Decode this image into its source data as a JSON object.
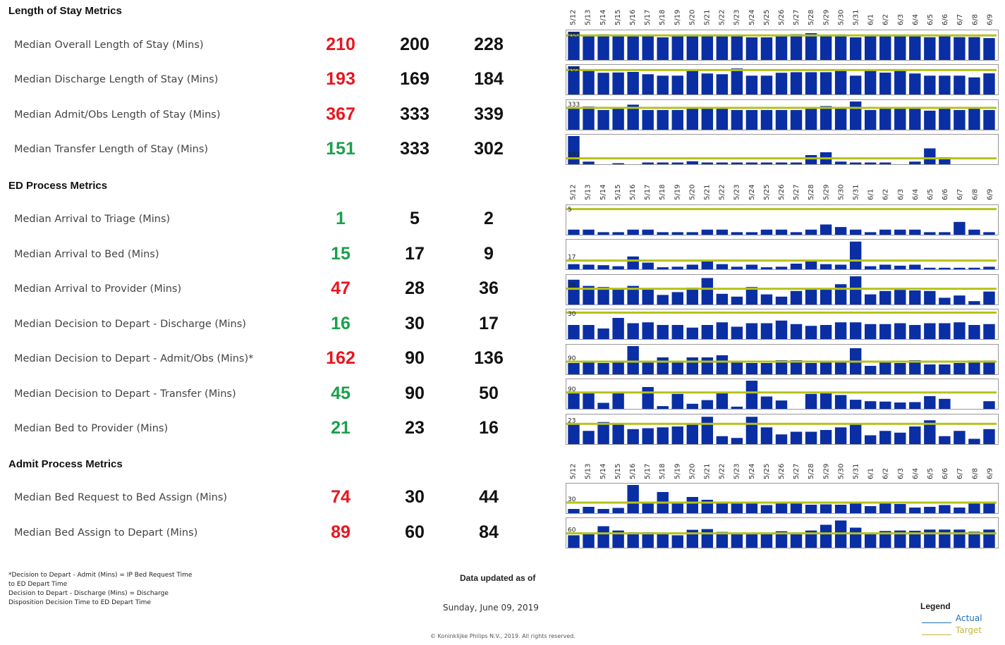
{
  "dates": [
    "5/12",
    "5/13",
    "5/14",
    "5/15",
    "5/16",
    "5/17",
    "5/18",
    "5/19",
    "5/20",
    "5/21",
    "5/22",
    "5/23",
    "5/24",
    "5/25",
    "5/26",
    "5/27",
    "5/28",
    "5/29",
    "5/30",
    "5/31",
    "6/1",
    "6/2",
    "6/3",
    "6/4",
    "6/5",
    "6/6",
    "6/7",
    "6/8",
    "6/9"
  ],
  "colors": {
    "red": "#e8161e",
    "green": "#1aa04a",
    "bar": "#0a2ea3",
    "target": "#b5c21a",
    "legend_actual": "#1f6fbf",
    "legend_target": "#c7b544"
  },
  "sections": {
    "los": "Length of Stay Metrics",
    "ed": "ED Process Metrics",
    "admit": "Admit Process Metrics"
  },
  "metrics": [
    {
      "label": "Median Overall Length of Stay (Mins)",
      "v1": "210",
      "v2": "200",
      "v3": "228",
      "v1_status": "red"
    },
    {
      "label": "Median Discharge Length of Stay (Mins)",
      "v1": "193",
      "v2": "169",
      "v3": "184",
      "v1_status": "red"
    },
    {
      "label": "Median Admit/Obs Length of Stay (Mins)",
      "v1": "367",
      "v2": "333",
      "v3": "339",
      "v1_status": "red"
    },
    {
      "label": "Median Transfer Length of Stay (Mins)",
      "v1": "151",
      "v2": "333",
      "v3": "302",
      "v1_status": "green"
    },
    {
      "label": "Median Arrival to Triage (Mins)",
      "v1": "1",
      "v2": "5",
      "v3": "2",
      "v1_status": "green"
    },
    {
      "label": "Median Arrival to Bed (Mins)",
      "v1": "15",
      "v2": "17",
      "v3": "9",
      "v1_status": "green"
    },
    {
      "label": "Median Arrival to Provider (Mins)",
      "v1": "47",
      "v2": "28",
      "v3": "36",
      "v1_status": "red"
    },
    {
      "label": "Median Decision to Depart  - Discharge (Mins)",
      "v1": "16",
      "v2": "30",
      "v3": "17",
      "v1_status": "green"
    },
    {
      "label": "Median Decision to Depart  - Admit/Obs (Mins)*",
      "v1": "162",
      "v2": "90",
      "v3": "136",
      "v1_status": "red"
    },
    {
      "label": "Median Decision to Depart  - Transfer (Mins)",
      "v1": "45",
      "v2": "90",
      "v3": "50",
      "v1_status": "green"
    },
    {
      "label": "Median Bed to Provider (Mins)",
      "v1": "21",
      "v2": "23",
      "v3": "16",
      "v1_status": "green"
    },
    {
      "label": "Median Bed Request to Bed Assign (Mins)",
      "v1": "74",
      "v2": "30",
      "v3": "44",
      "v1_status": "red"
    },
    {
      "label": "Median Bed Assign to Depart (Mins)",
      "v1": "89",
      "v2": "60",
      "v3": "84",
      "v1_status": "red"
    }
  ],
  "chart_data": [
    {
      "type": "bar",
      "metric": "Median Overall Length of Stay (Mins)",
      "target": 200,
      "target_label": "200",
      "ymax": 230,
      "values": [
        230,
        203,
        209,
        204,
        205,
        194,
        184,
        202,
        208,
        195,
        192,
        202,
        184,
        184,
        192,
        210,
        218,
        196,
        208,
        184,
        202,
        197,
        204,
        196,
        185,
        193,
        186,
        186,
        178
      ]
    },
    {
      "type": "bar",
      "metric": "Median Discharge Length of Stay (Mins)",
      "target": 169,
      "target_label": "169",
      "ymax": 195,
      "values": [
        195,
        165,
        150,
        152,
        156,
        140,
        130,
        130,
        163,
        145,
        140,
        180,
        130,
        130,
        150,
        154,
        154,
        154,
        164,
        130,
        164,
        151,
        164,
        145,
        130,
        130,
        130,
        118,
        146
      ]
    },
    {
      "type": "bar",
      "metric": "Median Admit/Obs Length of Stay (Mins)",
      "target": 333,
      "target_label": "333",
      "ymax": 430,
      "values": [
        320,
        354,
        300,
        340,
        382,
        300,
        300,
        300,
        326,
        348,
        332,
        300,
        300,
        300,
        300,
        300,
        336,
        360,
        318,
        430,
        300,
        332,
        322,
        336,
        290,
        318,
        300,
        318,
        300
      ]
    },
    {
      "type": "bar",
      "metric": "Median Transfer Length of Stay (Mins)",
      "target": 333,
      "target_label": "333",
      "ymax": 1600,
      "values": [
        1600,
        150,
        0,
        60,
        0,
        100,
        100,
        100,
        170,
        100,
        100,
        100,
        100,
        100,
        100,
        100,
        520,
        680,
        150,
        100,
        100,
        100,
        0,
        150,
        900,
        400,
        0,
        0,
        0
      ]
    },
    {
      "type": "bar",
      "metric": "Median Arrival to Triage (Mins)",
      "target": 5,
      "target_label": "5",
      "ymax": 5.5,
      "values": [
        1,
        1,
        0.5,
        0.5,
        1,
        1,
        0.5,
        0.5,
        0.5,
        1,
        1,
        0.5,
        0.5,
        1,
        1,
        0.5,
        1,
        2,
        1.5,
        1,
        0.5,
        1,
        1,
        1,
        0.5,
        0.5,
        2.5,
        1,
        0.5
      ]
    },
    {
      "type": "bar",
      "metric": "Median Arrival to Bed (Mins)",
      "target": 17,
      "target_label": "17",
      "ymax": 55,
      "values": [
        10,
        9,
        8,
        6,
        25,
        13,
        4,
        5,
        9,
        16,
        10,
        5,
        9,
        4,
        5,
        11,
        16,
        10,
        9,
        54,
        6,
        9,
        7,
        9,
        3,
        3,
        3,
        3,
        5
      ]
    },
    {
      "type": "bar",
      "metric": "Median Arrival to Provider (Mins)",
      "target": 28,
      "target_label": "28",
      "ymax": 50,
      "values": [
        44,
        33,
        31,
        28,
        33,
        29,
        17,
        22,
        30,
        47,
        19,
        14,
        31,
        18,
        14,
        24,
        27,
        27,
        36,
        50,
        18,
        24,
        26,
        25,
        24,
        12,
        16,
        6,
        23
      ]
    },
    {
      "type": "bar",
      "metric": "Median Decision to Depart - Discharge (Mins)",
      "target": 30,
      "target_label": "30",
      "ymax": 32,
      "values": [
        16,
        16,
        12,
        24,
        18,
        19,
        16,
        16,
        13,
        16,
        19,
        14,
        18,
        18,
        21,
        17,
        15,
        16,
        19,
        19,
        17,
        17,
        18,
        16,
        18,
        18,
        19,
        16,
        17
      ]
    },
    {
      "type": "bar",
      "metric": "Median Decision to Depart - Admit/Obs (Mins)*",
      "target": 90,
      "target_label": "90",
      "ymax": 200,
      "values": [
        80,
        95,
        80,
        85,
        200,
        92,
        120,
        85,
        120,
        120,
        135,
        90,
        80,
        80,
        100,
        100,
        80,
        95,
        90,
        185,
        60,
        90,
        80,
        100,
        70,
        70,
        80,
        98,
        98
      ]
    },
    {
      "type": "bar",
      "metric": "Median Decision to Depart - Transfer (Mins)",
      "target": 90,
      "target_label": "90",
      "ymax": 155,
      "values": [
        88,
        88,
        33,
        88,
        0,
        120,
        15,
        82,
        28,
        48,
        88,
        12,
        155,
        68,
        46,
        0,
        82,
        90,
        76,
        50,
        42,
        40,
        35,
        37,
        70,
        55,
        0,
        0,
        42
      ]
    },
    {
      "type": "bar",
      "metric": "Median Bed to Provider (Mins)",
      "target": 23,
      "target_label": "23",
      "ymax": 32,
      "values": [
        23,
        15,
        25,
        23,
        17,
        18,
        19,
        20,
        23,
        31,
        9,
        7,
        31,
        19,
        11,
        14,
        14,
        16,
        19,
        22,
        10,
        15,
        13,
        20,
        27,
        9,
        15,
        6,
        17
      ]
    },
    {
      "type": "bar",
      "metric": "Median Bed Request to Bed Assign (Mins)",
      "target": 30,
      "target_label": "30",
      "ymax": 80,
      "values": [
        12,
        18,
        12,
        15,
        80,
        28,
        60,
        27,
        46,
        38,
        33,
        31,
        29,
        23,
        27,
        31,
        24,
        25,
        24,
        32,
        20,
        28,
        26,
        16,
        18,
        23,
        16,
        28,
        28
      ]
    },
    {
      "type": "bar",
      "metric": "Median Bed Assign to Depart (Mins)",
      "target": 60,
      "target_label": "60",
      "ymax": 118,
      "values": [
        52,
        62,
        90,
        72,
        65,
        65,
        62,
        52,
        75,
        78,
        66,
        62,
        57,
        62,
        69,
        64,
        72,
        96,
        114,
        84,
        62,
        70,
        72,
        71,
        76,
        76,
        76,
        67,
        76
      ]
    }
  ],
  "footnote": [
    "*Decision to Depart - Admit (Mins) = IP Bed Request Time",
    "to ED Depart Time",
    "Decision to Depart - Discharge (Mins) = Discharge",
    "Disposition Decision Time to ED Depart Time"
  ],
  "updated_label": "Data updated as of",
  "updated_date": "Sunday, June 09, 2019",
  "copyright": "© Koninklijke Philips N.V., 2019. All rights reserved.",
  "legend": {
    "title": "Legend",
    "actual": "Actual",
    "target": "Target"
  }
}
